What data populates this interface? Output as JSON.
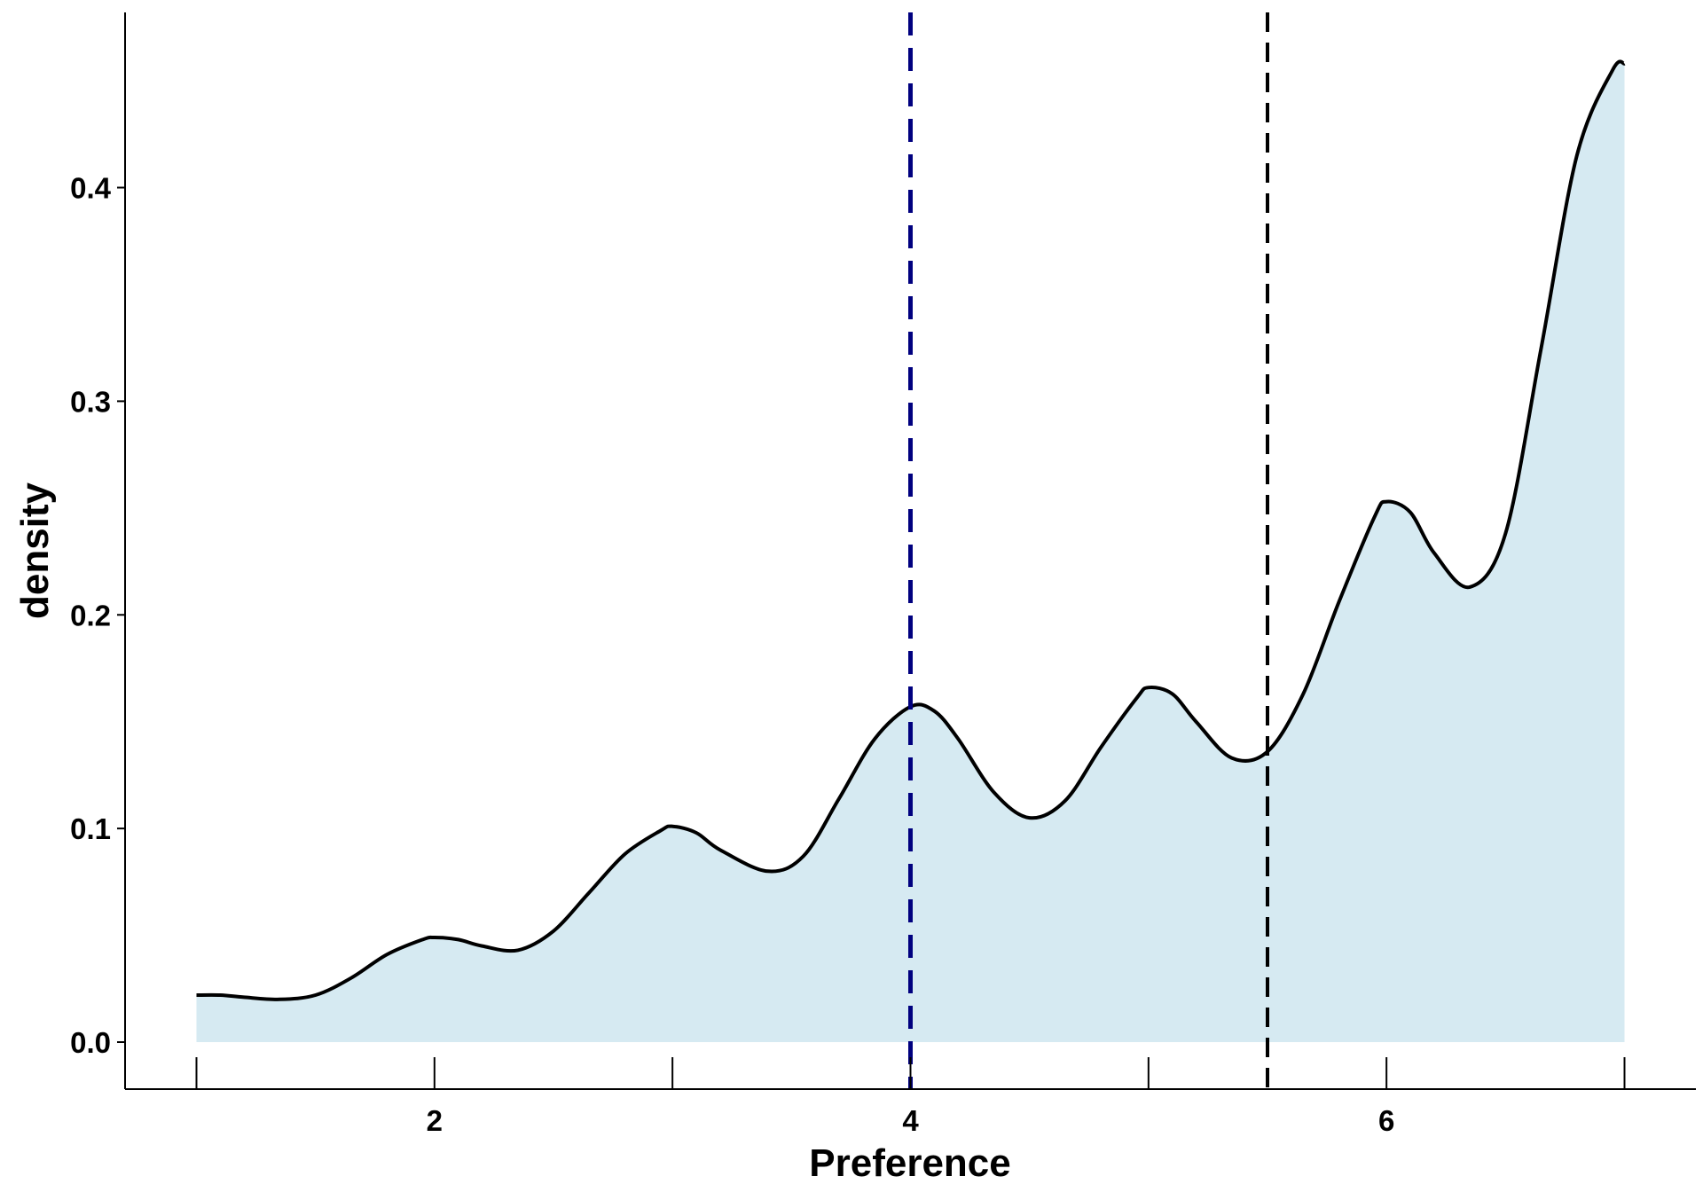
{
  "chart_data": {
    "type": "area",
    "title": "",
    "xlabel": "Preference",
    "ylabel": "density",
    "xlim": [
      0.7,
      7.3
    ],
    "ylim": [
      -0.022,
      0.482
    ],
    "x_ticks": [
      1,
      2,
      3,
      4,
      5,
      6,
      7
    ],
    "x_tick_labels": [
      "",
      "2",
      "",
      "4",
      "",
      "6",
      ""
    ],
    "y_ticks": [
      0.0,
      0.1,
      0.2,
      0.3,
      0.4
    ],
    "y_tick_labels": [
      "0.0",
      "0.1",
      "0.2",
      "0.3",
      "0.4"
    ],
    "grid": false,
    "legend": "none",
    "fill_color": "#d6eaf2",
    "line_color": "#000000",
    "density": {
      "x": [
        1.0,
        1.1,
        1.2,
        1.35,
        1.5,
        1.65,
        1.8,
        1.95,
        2.0,
        2.1,
        2.2,
        2.35,
        2.5,
        2.65,
        2.8,
        2.95,
        3.0,
        3.1,
        3.2,
        3.4,
        3.55,
        3.7,
        3.85,
        4.0,
        4.1,
        4.2,
        4.35,
        4.5,
        4.65,
        4.8,
        4.95,
        5.0,
        5.1,
        5.2,
        5.35,
        5.5,
        5.65,
        5.8,
        5.95,
        6.0,
        6.1,
        6.2,
        6.35,
        6.5,
        6.65,
        6.8,
        6.95,
        7.0
      ],
      "y": [
        0.022,
        0.022,
        0.021,
        0.02,
        0.022,
        0.03,
        0.041,
        0.048,
        0.049,
        0.048,
        0.045,
        0.043,
        0.052,
        0.07,
        0.088,
        0.099,
        0.101,
        0.098,
        0.09,
        0.08,
        0.087,
        0.114,
        0.142,
        0.157,
        0.155,
        0.142,
        0.117,
        0.105,
        0.113,
        0.138,
        0.161,
        0.166,
        0.163,
        0.15,
        0.133,
        0.136,
        0.163,
        0.206,
        0.246,
        0.253,
        0.248,
        0.229,
        0.213,
        0.238,
        0.325,
        0.415,
        0.455,
        0.458
      ]
    },
    "vlines": [
      {
        "x": 4.0,
        "color": "#00007f",
        "style": "dashed"
      },
      {
        "x": 5.5,
        "color": "#000000",
        "style": "dashed"
      }
    ]
  }
}
